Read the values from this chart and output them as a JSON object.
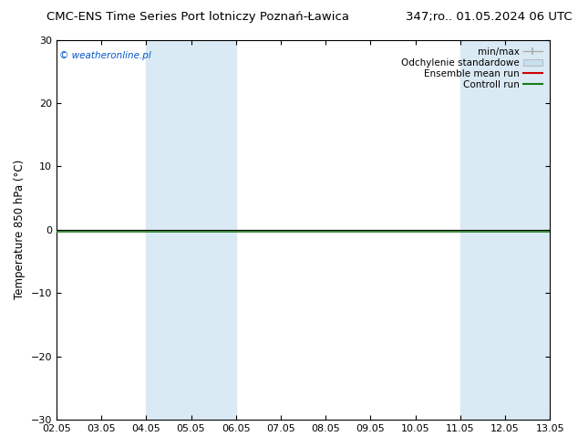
{
  "title_left": "CMC-ENS Time Series Port lotniczy Poznań-Ławica",
  "title_right": "347;ro.. 01.05.2024 06 UTC",
  "ylabel": "Temperature 850 hPa (°C)",
  "ylim": [
    -30,
    30
  ],
  "yticks": [
    -30,
    -20,
    -10,
    0,
    10,
    20,
    30
  ],
  "xtick_labels": [
    "02.05",
    "03.05",
    "04.05",
    "05.05",
    "06.05",
    "07.05",
    "08.05",
    "09.05",
    "10.05",
    "11.05",
    "12.05",
    "13.05"
  ],
  "watermark": "© weatheronline.pl",
  "watermark_color": "#0055cc",
  "bg_color": "#ffffff",
  "plot_bg_color": "#ffffff",
  "shaded_regions": [
    {
      "xstart": 2,
      "xend": 4,
      "color": "#daeaf5"
    },
    {
      "xstart": 9,
      "xend": 11,
      "color": "#daeaf5"
    }
  ],
  "horizontal_line_y": -0.3,
  "horizontal_line_color": "#1a7a1a",
  "black_line_y": 0,
  "black_line_color": "#000000",
  "legend_labels": [
    "min/max",
    "Odchylenie standardowe",
    "Ensemble mean run",
    "Controll run"
  ],
  "legend_handle_colors": [
    "#aaaaaa",
    "#c8dff0",
    "#cc0000",
    "#1a7a1a"
  ],
  "title_fontsize": 9.5,
  "axis_label_fontsize": 8.5,
  "tick_fontsize": 8,
  "watermark_fontsize": 7.5,
  "legend_fontsize": 7.5
}
